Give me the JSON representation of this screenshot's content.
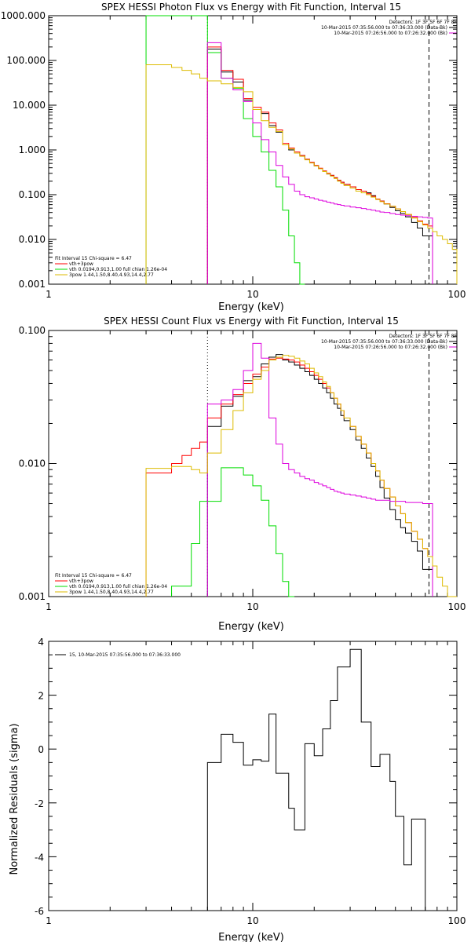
{
  "chart_data": [
    {
      "type": "line",
      "title": "SPEX HESSI Photon Flux vs Energy with Fit Function, Interval 15",
      "xlabel": "Energy (keV)",
      "ylabel": "",
      "xscale": "log",
      "yscale": "log",
      "xlim": [
        1,
        100
      ],
      "ylim": [
        0.001,
        1000
      ],
      "x_ticks": [
        "1",
        "10",
        "100"
      ],
      "y_ticks": [
        "1000.000",
        "100.000",
        "10.000",
        "1.000",
        "0.100",
        "0.010",
        "0.001"
      ],
      "vlines": [
        {
          "x": 6.0,
          "style": "dotted"
        },
        {
          "x": 73.0,
          "style": "dashed"
        }
      ],
      "legend_right": [
        "Detectors: 1F 3F 5F 6F 7F 8F",
        "10-Mar-2015 07:35:56.000 to 07:36:33.000 (Data-Bk)",
        "10-Mar-2015 07:26:56.000 to 07:26:32.000 (Bk)"
      ],
      "legend_left": [
        "Fit Interval 15   Chi-square = 6.47",
        "vth+3pow",
        "vth 0.0194,0.913,1.00   full chian 1.26e-04",
        "3pow 1.44,1.50,8.40,4.93,14.4,2.77"
      ],
      "edges": [
        3.0,
        3.4,
        4.0,
        4.5,
        5.0,
        5.5,
        6.0,
        6.5,
        7.0,
        7.5,
        8.0,
        8.5,
        9.0,
        9.5,
        10.0,
        10.5,
        11.0,
        11.5,
        12.0,
        12.5,
        13.0,
        13.5,
        14.0,
        15.0,
        16.0,
        17.0,
        18.0,
        19.0,
        20.0,
        21.0,
        22.0,
        23.0,
        24.0,
        25.0,
        26.0,
        27.0,
        28.0,
        30.0,
        32.0,
        34.0,
        36.0,
        38.0,
        40.0,
        42.0,
        44.0,
        47.0,
        50.0,
        53.0,
        56.0,
        60.0,
        64.0,
        68.0,
        72.0,
        76.0,
        80.0,
        85.0,
        90.0,
        95.0,
        100.0
      ],
      "series": [
        {
          "name": "Data-Bk",
          "color": "#000000",
          "values": [
            null,
            null,
            null,
            null,
            null,
            null,
            180,
            180,
            55,
            55,
            33,
            33,
            13,
            13,
            8,
            8,
            6.5,
            6.5,
            3.5,
            3.5,
            2.5,
            2.5,
            1.3,
            1.0,
            0.85,
            0.75,
            0.62,
            0.52,
            0.44,
            0.38,
            0.33,
            0.29,
            0.27,
            0.24,
            0.21,
            0.19,
            0.17,
            0.15,
            0.13,
            0.12,
            0.11,
            0.095,
            0.08,
            0.072,
            0.062,
            0.052,
            0.044,
            0.038,
            0.032,
            0.024,
            0.018,
            0.012,
            0.012,
            null,
            null,
            null,
            null,
            null
          ]
        },
        {
          "name": "vth+3pow",
          "color": "#ff0000",
          "values": [
            null,
            null,
            null,
            null,
            null,
            null,
            200,
            200,
            60,
            60,
            38,
            38,
            14,
            14,
            9,
            9,
            7,
            7,
            4,
            4,
            2.8,
            2.8,
            1.4,
            1.1,
            0.9,
            0.75,
            0.62,
            0.53,
            0.45,
            0.39,
            0.34,
            0.3,
            0.27,
            0.24,
            0.21,
            0.19,
            0.17,
            0.15,
            0.13,
            0.12,
            0.105,
            0.092,
            0.08,
            0.072,
            0.063,
            0.055,
            0.048,
            0.042,
            0.036,
            0.031,
            0.026,
            0.022,
            0.02,
            null,
            null,
            null,
            null,
            null
          ]
        },
        {
          "name": "vth",
          "color": "#00dd00",
          "values": [
            1000,
            1000,
            1000,
            1000,
            1000,
            1000,
            150,
            150,
            40,
            40,
            24,
            24,
            5,
            5,
            2,
            2,
            0.9,
            0.9,
            0.35,
            0.35,
            0.15,
            0.15,
            0.045,
            0.012,
            0.003,
            0.0008,
            null,
            null,
            null,
            null,
            null,
            null,
            null,
            null,
            null,
            null,
            null,
            null,
            null,
            null,
            null,
            null,
            null,
            null,
            null,
            null,
            null,
            null,
            null,
            null,
            null,
            null,
            null,
            null,
            null,
            null,
            null,
            null
          ]
        },
        {
          "name": "Bk",
          "color": "#dd00dd",
          "values": [
            null,
            null,
            null,
            null,
            null,
            null,
            250,
            250,
            40,
            40,
            22,
            22,
            12,
            12,
            4,
            4,
            1.7,
            1.7,
            0.9,
            0.9,
            0.45,
            0.45,
            0.25,
            0.17,
            0.12,
            0.1,
            0.09,
            0.085,
            0.08,
            0.075,
            0.072,
            0.068,
            0.065,
            0.062,
            0.06,
            0.058,
            0.056,
            0.053,
            0.051,
            0.049,
            0.047,
            0.045,
            0.043,
            0.041,
            0.04,
            0.038,
            0.036,
            0.035,
            0.034,
            0.033,
            0.032,
            0.031,
            0.03,
            null,
            null,
            null,
            null,
            null
          ]
        },
        {
          "name": "3pow",
          "color": "#ddbb00",
          "values": [
            80,
            80,
            70,
            60,
            50,
            40,
            35,
            35,
            30,
            30,
            25,
            25,
            20,
            20,
            8,
            8,
            4.5,
            4.5,
            3.2,
            3.2,
            2.6,
            2.6,
            1.3,
            1.05,
            0.85,
            0.72,
            0.6,
            0.51,
            0.44,
            0.38,
            0.33,
            0.29,
            0.26,
            0.23,
            0.2,
            0.18,
            0.16,
            0.14,
            0.12,
            0.11,
            0.1,
            0.088,
            0.078,
            0.07,
            0.062,
            0.055,
            0.048,
            0.042,
            0.036,
            0.03,
            0.025,
            0.021,
            0.018,
            0.015,
            0.012,
            0.01,
            0.008,
            0.006
          ]
        }
      ]
    },
    {
      "type": "line",
      "title": "SPEX HESSI Count Flux vs Energy with Fit Function, Interval 15",
      "xlabel": "Energy (keV)",
      "ylabel": "",
      "xscale": "log",
      "yscale": "log",
      "xlim": [
        1,
        100
      ],
      "ylim": [
        0.001,
        0.1
      ],
      "x_ticks": [
        "1",
        "10",
        "100"
      ],
      "y_ticks": [
        "0.100",
        "0.010",
        "0.001"
      ],
      "vlines": [
        {
          "x": 6.0,
          "style": "dotted"
        },
        {
          "x": 73.0,
          "style": "dashed"
        }
      ],
      "legend_right": [
        "Detectors: 1F 3F 5F 6F 7F 8F",
        "10-Mar-2015 07:35:56.000 to 07:36:33.000 (Data-Bk)",
        "10-Mar-2015 07:26:56.000 to 07:26:32.000 (Bk)"
      ],
      "legend_left": [
        "Fit Interval 15   Chi-square = 6.47",
        "vth+3pow",
        "vth 0.0194,0.913,1.00   full chian 1.26e-04",
        "3pow 1.44,1.50,8.40,4.93,14.4,2.77"
      ],
      "edges": [
        3.0,
        3.4,
        4.0,
        4.5,
        5.0,
        5.5,
        6.0,
        6.5,
        7.0,
        7.5,
        8.0,
        8.5,
        9.0,
        9.5,
        10.0,
        10.5,
        11.0,
        11.5,
        12.0,
        12.5,
        13.0,
        13.5,
        14.0,
        15.0,
        16.0,
        17.0,
        18.0,
        19.0,
        20.0,
        21.0,
        22.0,
        23.0,
        24.0,
        25.0,
        26.0,
        27.0,
        28.0,
        30.0,
        32.0,
        34.0,
        36.0,
        38.0,
        40.0,
        42.0,
        44.0,
        47.0,
        50.0,
        53.0,
        56.0,
        60.0,
        64.0,
        68.0,
        72.0,
        76.0,
        80.0,
        85.0,
        90.0,
        95.0,
        100.0
      ],
      "series": [
        {
          "name": "Data-Bk",
          "color": "#000000",
          "values": [
            null,
            null,
            null,
            null,
            null,
            null,
            0.019,
            0.019,
            0.027,
            0.027,
            0.032,
            0.032,
            0.042,
            0.042,
            0.045,
            0.045,
            0.056,
            0.056,
            0.063,
            0.063,
            0.066,
            0.066,
            0.06,
            0.058,
            0.055,
            0.052,
            0.049,
            0.046,
            0.043,
            0.04,
            0.037,
            0.034,
            0.031,
            0.028,
            0.026,
            0.023,
            0.021,
            0.018,
            0.015,
            0.013,
            0.011,
            0.0095,
            0.008,
            0.0066,
            0.0055,
            0.0045,
            0.0038,
            0.0033,
            0.003,
            0.0026,
            0.0022,
            0.0016,
            0.0016,
            null,
            null,
            null,
            null,
            null
          ]
        },
        {
          "name": "vth+3pow",
          "color": "#ff0000",
          "values": [
            0.0085,
            0.0085,
            0.01,
            0.0115,
            0.013,
            0.0145,
            0.022,
            0.022,
            0.028,
            0.028,
            0.033,
            0.033,
            0.04,
            0.04,
            0.047,
            0.047,
            0.053,
            0.053,
            0.061,
            0.061,
            0.062,
            0.062,
            0.061,
            0.06,
            0.058,
            0.055,
            0.052,
            0.049,
            0.046,
            0.043,
            0.04,
            0.037,
            0.034,
            0.031,
            0.028,
            0.025,
            0.022,
            0.019,
            0.016,
            0.014,
            0.012,
            0.01,
            0.0088,
            0.0075,
            0.0065,
            0.0056,
            0.0048,
            0.0042,
            0.0036,
            0.0031,
            0.0027,
            0.0023,
            0.002,
            null,
            null,
            null,
            null,
            null
          ]
        },
        {
          "name": "vth",
          "color": "#00dd00",
          "values": [
            null,
            null,
            0.0012,
            0.0012,
            0.0025,
            0.0052,
            0.0052,
            0.0052,
            0.0093,
            0.0093,
            0.0093,
            0.0093,
            0.0082,
            0.0082,
            0.0068,
            0.0068,
            0.0053,
            0.0053,
            0.0034,
            0.0034,
            0.0021,
            0.0021,
            0.0013,
            0.0009,
            null,
            null,
            null,
            null,
            null,
            null,
            null,
            null,
            null,
            null,
            null,
            null,
            null,
            null,
            null,
            null,
            null,
            null,
            null,
            null,
            null,
            null,
            null,
            null,
            null,
            null,
            null,
            null,
            null,
            null,
            null,
            null,
            null,
            null
          ]
        },
        {
          "name": "Bk",
          "color": "#dd00dd",
          "values": [
            null,
            null,
            null,
            null,
            null,
            null,
            0.028,
            0.028,
            0.03,
            0.03,
            0.036,
            0.036,
            0.05,
            0.05,
            0.08,
            0.08,
            0.062,
            0.062,
            0.022,
            0.022,
            0.014,
            0.014,
            0.01,
            0.009,
            0.0085,
            0.008,
            0.0077,
            0.0075,
            0.0072,
            0.007,
            0.0068,
            0.0066,
            0.0064,
            0.0062,
            0.0061,
            0.006,
            0.0059,
            0.0058,
            0.0057,
            0.0056,
            0.0055,
            0.0054,
            0.0053,
            0.0053,
            0.0053,
            0.0052,
            0.0052,
            0.0052,
            0.0051,
            0.0051,
            0.0051,
            0.005,
            0.005,
            null,
            null,
            null,
            null,
            null
          ]
        },
        {
          "name": "3pow",
          "color": "#ddbb00",
          "values": [
            0.0092,
            0.0092,
            0.0095,
            0.0095,
            0.009,
            0.0085,
            0.012,
            0.012,
            0.018,
            0.018,
            0.025,
            0.025,
            0.034,
            0.034,
            0.043,
            0.043,
            0.05,
            0.05,
            0.06,
            0.06,
            0.063,
            0.063,
            0.065,
            0.064,
            0.062,
            0.059,
            0.056,
            0.052,
            0.048,
            0.045,
            0.041,
            0.038,
            0.034,
            0.031,
            0.028,
            0.025,
            0.022,
            0.019,
            0.016,
            0.014,
            0.012,
            0.01,
            0.0088,
            0.0075,
            0.0065,
            0.0056,
            0.0048,
            0.0042,
            0.0036,
            0.0031,
            0.0027,
            0.0023,
            0.002,
            0.0017,
            0.0014,
            0.0012,
            0.001,
            0.00085
          ]
        }
      ]
    },
    {
      "type": "line",
      "title": "",
      "xlabel": "Energy (keV)",
      "ylabel": "Normalized Residuals (sigma)",
      "xscale": "log",
      "yscale": "linear",
      "xlim": [
        1,
        100
      ],
      "ylim": [
        -6,
        4
      ],
      "x_ticks": [
        "1",
        "10",
        "100"
      ],
      "y_ticks": [
        "4",
        "2",
        "0",
        "-2",
        "-4",
        "-6"
      ],
      "legend_left": [
        "15, 10-Mar-2015 07:35:56.000 to 07:36:33.000"
      ],
      "edges": [
        6.0,
        7.0,
        7.5,
        8.0,
        8.5,
        9.0,
        9.5,
        10.0,
        10.5,
        11.0,
        12.0,
        12.5,
        13.0,
        14.0,
        15.0,
        16.0,
        17.0,
        18.0,
        20.0,
        22.0,
        24.0,
        26.0,
        28.0,
        30.0,
        32.0,
        34.0,
        36.0,
        38.0,
        40.0,
        42.0,
        44.0,
        47.0,
        50.0,
        55.0,
        60.0,
        65.0,
        70.0,
        72.0
      ],
      "series": [
        {
          "name": "15, 10-Mar-2015 07:35:56.000 to 07:36:33.000",
          "color": "#000000",
          "values": [
            -0.5,
            0.55,
            0.55,
            0.25,
            0.25,
            -0.6,
            -0.6,
            -0.4,
            -0.4,
            -0.45,
            1.3,
            1.3,
            -0.9,
            -0.9,
            -2.2,
            -3.0,
            -3.0,
            0.2,
            -0.25,
            0.75,
            1.8,
            3.05,
            3.05,
            3.7,
            3.7,
            1.0,
            1.0,
            -0.65,
            -0.65,
            -0.2,
            -0.2,
            -1.2,
            -2.5,
            -4.3,
            -2.6,
            -2.6,
            -6.0
          ]
        }
      ]
    }
  ]
}
